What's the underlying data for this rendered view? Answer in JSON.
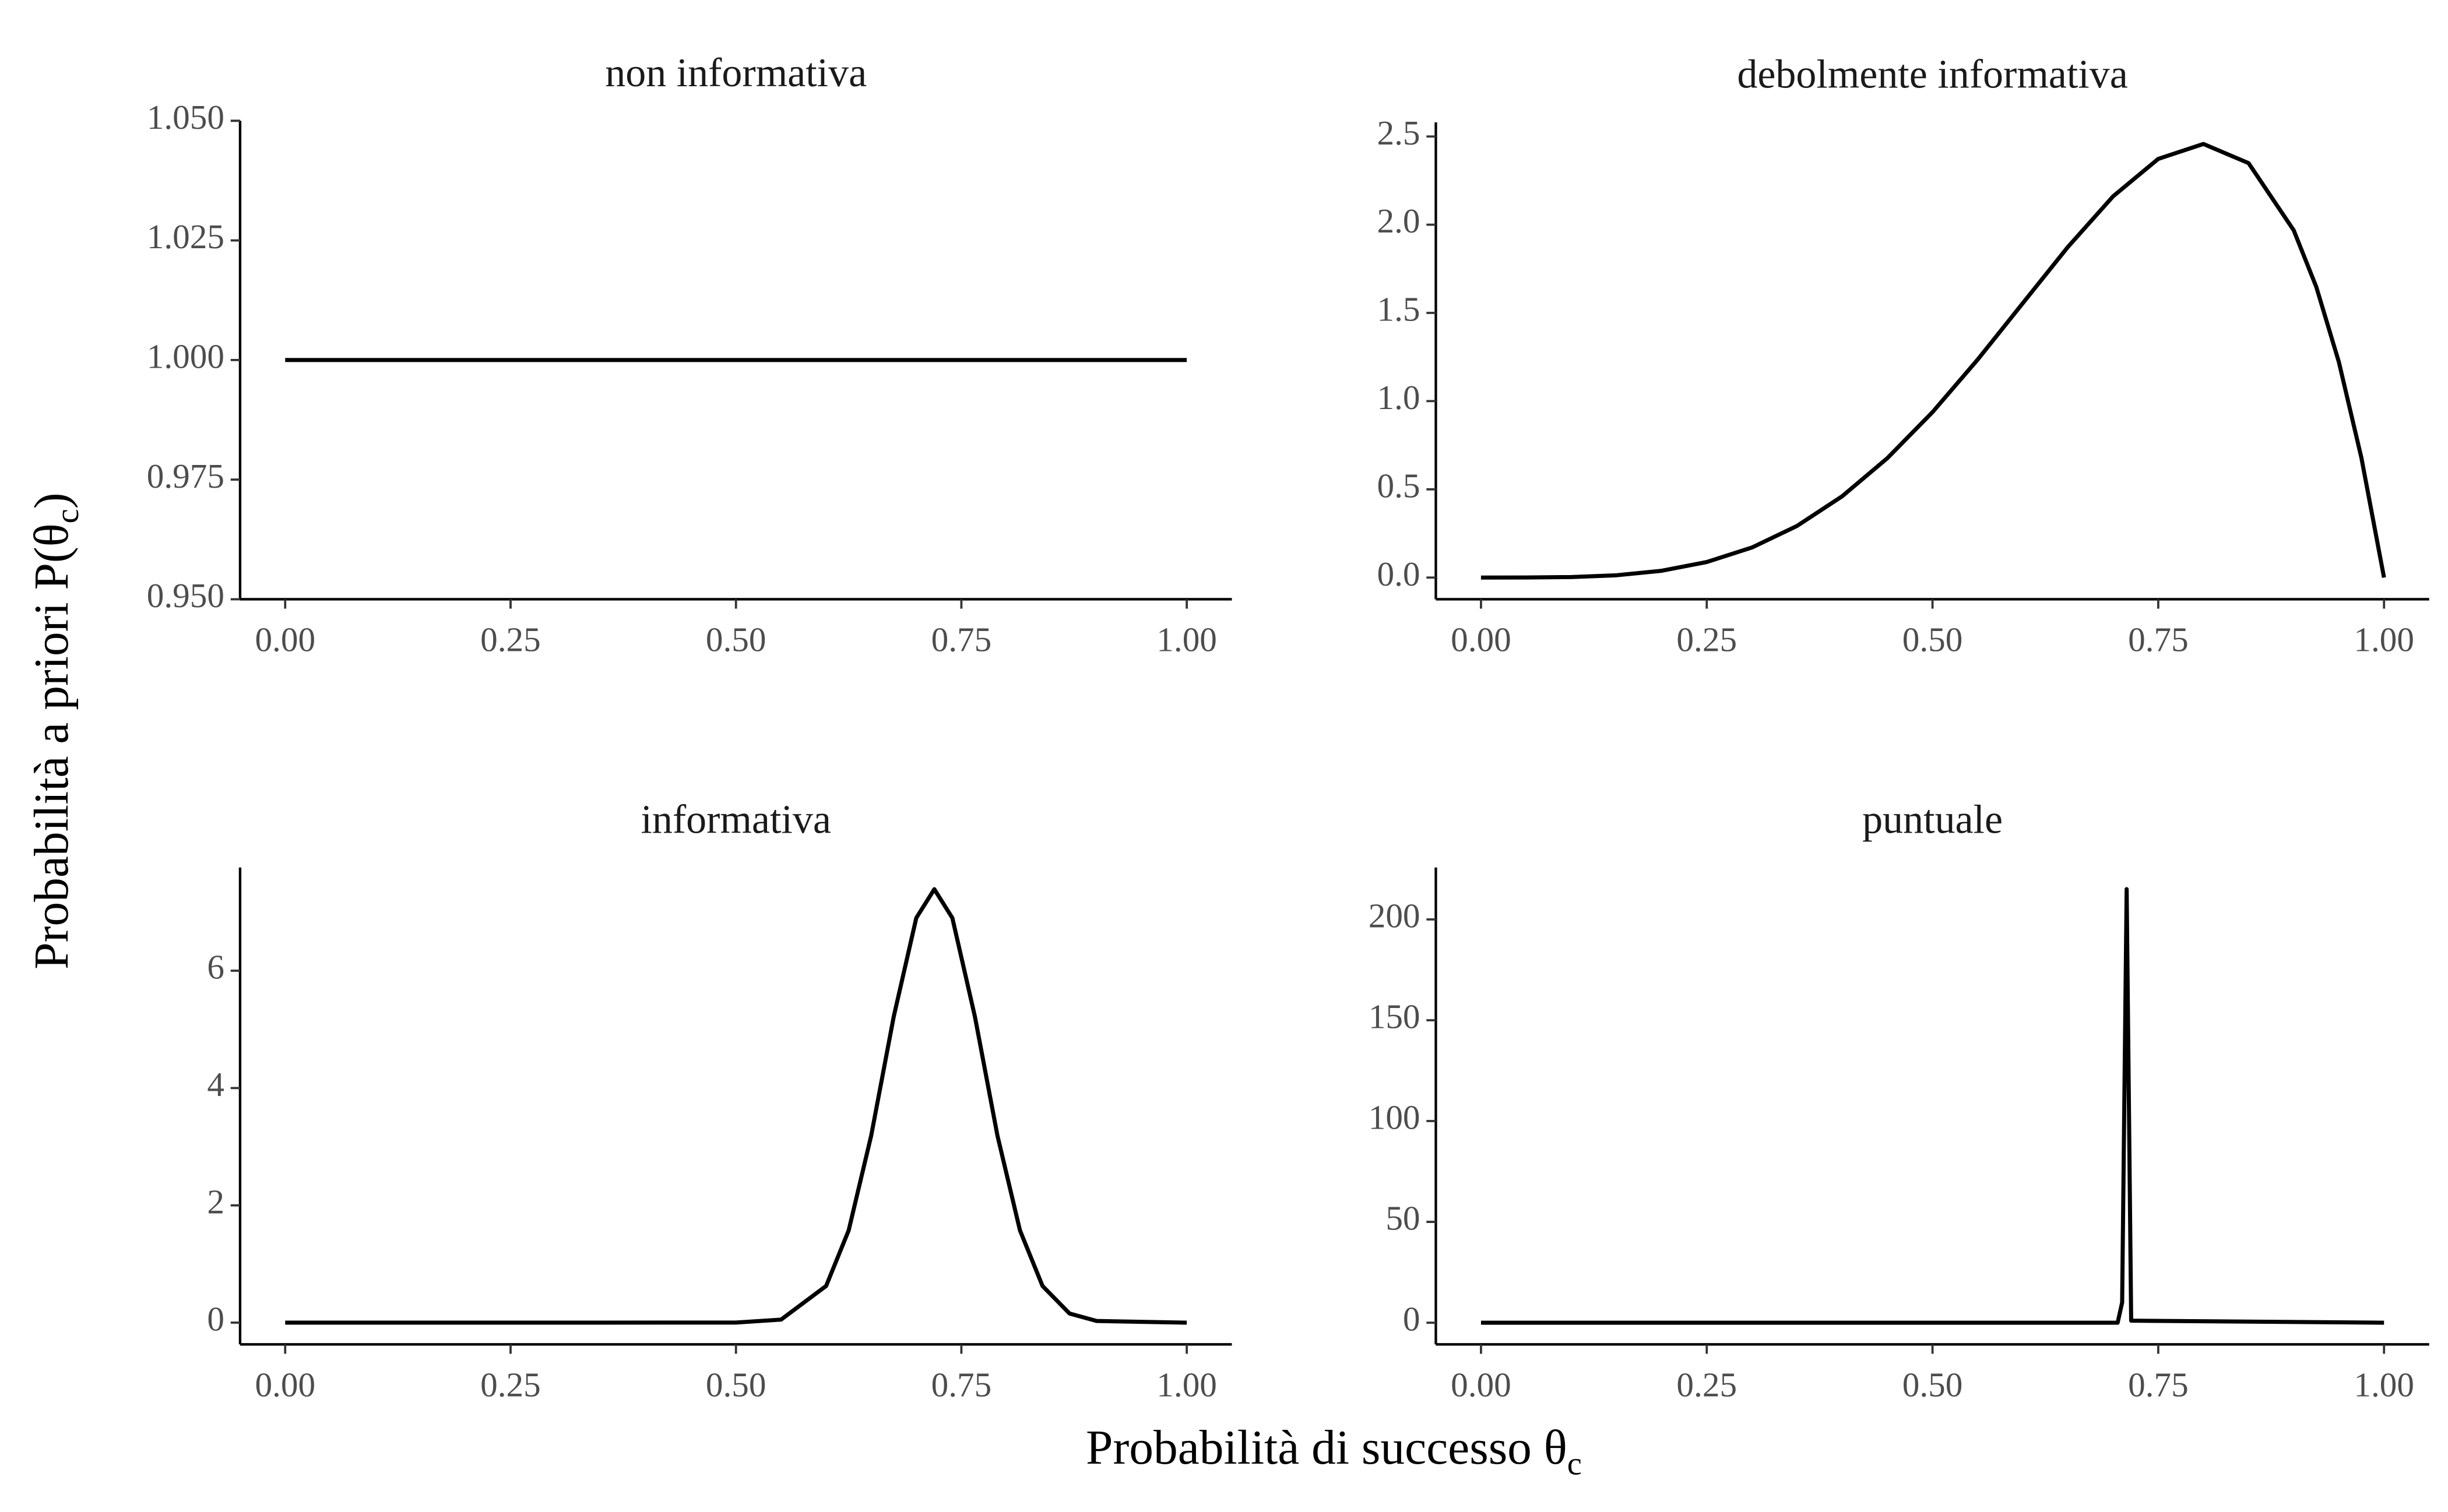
{
  "axis_labels": {
    "x": {
      "text": "Probabilità di successo θ",
      "sub": "c"
    },
    "y": {
      "text": "Probabilità a priori P(θ",
      "sub": "c",
      "end": ")"
    }
  },
  "chart_data": [
    {
      "type": "line",
      "title": "non informativa",
      "color": "#000000",
      "x": [
        0,
        1
      ],
      "values": [
        1,
        1
      ],
      "xlim": [
        -0.05,
        1.05
      ],
      "ylim": [
        0.95,
        1.05
      ],
      "xticks": [
        {
          "value": 0,
          "label": "0.00"
        },
        {
          "value": 0.25,
          "label": "0.25"
        },
        {
          "value": 0.5,
          "label": "0.50"
        },
        {
          "value": 0.75,
          "label": "0.75"
        },
        {
          "value": 1,
          "label": "1.00"
        }
      ],
      "yticks": [
        {
          "value": 0.95,
          "label": "0.950"
        },
        {
          "value": 0.975,
          "label": "0.975"
        },
        {
          "value": 1,
          "label": "1.000"
        },
        {
          "value": 1.025,
          "label": "1.025"
        },
        {
          "value": 1.05,
          "label": "1.050"
        }
      ]
    },
    {
      "type": "line",
      "title": "debolmente informativa",
      "color": "#000000",
      "x": [
        0,
        0.05,
        0.1,
        0.15,
        0.2,
        0.25,
        0.3,
        0.35,
        0.4,
        0.45,
        0.5,
        0.55,
        0.6,
        0.65,
        0.7,
        0.75,
        0.8,
        0.85,
        0.9,
        0.925,
        0.95,
        0.975,
        1
      ],
      "values": [
        0,
        0.0002,
        0.0027,
        0.0129,
        0.0384,
        0.0879,
        0.1701,
        0.2926,
        0.4608,
        0.6766,
        0.9375,
        1.2353,
        1.5552,
        1.8743,
        2.1609,
        2.373,
        2.4576,
        2.349,
        1.9683,
        1.6472,
        1.2218,
        0.6778,
        0
      ],
      "xlim": [
        -0.05,
        1.05
      ],
      "ylim": [
        -0.123,
        2.58
      ],
      "xticks": [
        {
          "value": 0,
          "label": "0.00"
        },
        {
          "value": 0.25,
          "label": "0.25"
        },
        {
          "value": 0.5,
          "label": "0.50"
        },
        {
          "value": 0.75,
          "label": "0.75"
        },
        {
          "value": 1,
          "label": "1.00"
        }
      ],
      "yticks": [
        {
          "value": 0,
          "label": "0.0"
        },
        0.5,
        {
          "value": 1,
          "label": "1.0"
        },
        1.5,
        {
          "value": 2,
          "label": "2.0"
        },
        2.5
      ]
    },
    {
      "type": "line",
      "title": "informativa",
      "color": "#000000",
      "x": [
        0,
        0.25,
        0.5,
        0.55,
        0.6,
        0.625,
        0.65,
        0.675,
        0.7,
        0.72,
        0.74,
        0.765,
        0.79,
        0.815,
        0.84,
        0.87,
        0.9,
        1
      ],
      "values": [
        0,
        0,
        0.002,
        0.052,
        0.626,
        1.573,
        3.19,
        5.22,
        6.9,
        7.39,
        6.9,
        5.22,
        3.19,
        1.573,
        0.626,
        0.156,
        0.029,
        0
      ],
      "xlim": [
        -0.05,
        1.05
      ],
      "ylim": [
        -0.37,
        7.76
      ],
      "xticks": [
        {
          "value": 0,
          "label": "0.00"
        },
        {
          "value": 0.25,
          "label": "0.25"
        },
        {
          "value": 0.5,
          "label": "0.50"
        },
        {
          "value": 0.75,
          "label": "0.75"
        },
        {
          "value": 1,
          "label": "1.00"
        }
      ],
      "yticks": [
        0,
        2,
        4,
        6
      ]
    },
    {
      "type": "line",
      "title": "puntuale",
      "color": "#000000",
      "x": [
        0,
        0.705,
        0.71,
        0.715,
        0.72,
        1
      ],
      "values": [
        0,
        0,
        10,
        215,
        1,
        0
      ],
      "xlim": [
        -0.05,
        1.05
      ],
      "ylim": [
        -10.75,
        225.75
      ],
      "xticks": [
        {
          "value": 0,
          "label": "0.00"
        },
        {
          "value": 0.25,
          "label": "0.25"
        },
        {
          "value": 0.5,
          "label": "0.50"
        },
        {
          "value": 0.75,
          "label": "0.75"
        },
        {
          "value": 1,
          "label": "1.00"
        }
      ],
      "yticks": [
        0,
        50,
        100,
        150,
        200
      ]
    }
  ]
}
